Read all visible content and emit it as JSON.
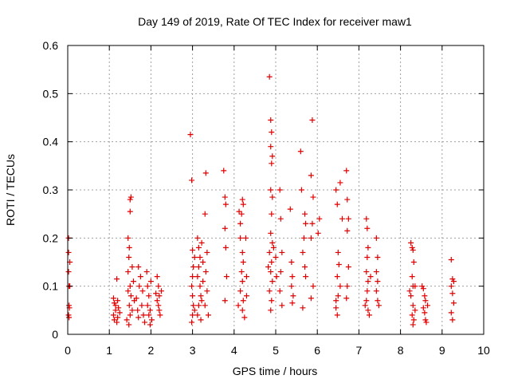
{
  "chart_data": {
    "type": "scatter",
    "title": "Day 149 of 2019, Rate Of TEC Index for receiver maw1",
    "xlabel": "GPS time / hours",
    "ylabel": "ROTI / TECUs",
    "xlim": [
      0,
      10
    ],
    "ylim": [
      0,
      0.6
    ],
    "xticks": [
      "0",
      "1",
      "2",
      "3",
      "4",
      "5",
      "6",
      "7",
      "8",
      "9",
      "10"
    ],
    "yticks": [
      "0",
      "0.1",
      "0.2",
      "0.3",
      "0.4",
      "0.5",
      "0.6"
    ],
    "grid": true,
    "marker": "plus",
    "color": "#e00000",
    "series": [
      {
        "points": [
          [
            0.02,
            0.2
          ],
          [
            0.02,
            0.17
          ],
          [
            0.02,
            0.13
          ],
          [
            0.03,
            0.1
          ],
          [
            0.03,
            0.06
          ],
          [
            0.02,
            0.04
          ],
          [
            0.05,
            0.15
          ],
          [
            0.05,
            0.1
          ],
          [
            0.04,
            0.055
          ],
          [
            0.03,
            0.035
          ],
          [
            1.1,
            0.075
          ],
          [
            1.12,
            0.065
          ],
          [
            1.15,
            0.05
          ],
          [
            1.1,
            0.04
          ],
          [
            1.12,
            0.03
          ],
          [
            1.18,
            0.115
          ],
          [
            1.2,
            0.07
          ],
          [
            1.22,
            0.055
          ],
          [
            1.18,
            0.025
          ],
          [
            1.25,
            0.045
          ],
          [
            1.15,
            0.06
          ],
          [
            1.2,
            0.035
          ],
          [
            1.45,
            0.2
          ],
          [
            1.48,
            0.18
          ],
          [
            1.5,
            0.28
          ],
          [
            1.52,
            0.285
          ],
          [
            1.5,
            0.255
          ],
          [
            1.47,
            0.16
          ],
          [
            1.45,
            0.13
          ],
          [
            1.5,
            0.1
          ],
          [
            1.52,
            0.08
          ],
          [
            1.48,
            0.06
          ],
          [
            1.5,
            0.04
          ],
          [
            1.47,
            0.02
          ],
          [
            1.55,
            0.14
          ],
          [
            1.55,
            0.05
          ],
          [
            1.45,
            0.09
          ],
          [
            1.42,
            0.03
          ],
          [
            1.58,
            0.11
          ],
          [
            1.6,
            0.07
          ],
          [
            1.65,
            0.075
          ],
          [
            1.68,
            0.05
          ],
          [
            1.7,
            0.14
          ],
          [
            1.72,
            0.1
          ],
          [
            1.7,
            0.035
          ],
          [
            1.75,
            0.12
          ],
          [
            1.78,
            0.06
          ],
          [
            1.8,
            0.09
          ],
          [
            1.82,
            0.04
          ],
          [
            1.85,
            0.025
          ],
          [
            1.9,
            0.13
          ],
          [
            1.92,
            0.1
          ],
          [
            1.95,
            0.08
          ],
          [
            1.92,
            0.06
          ],
          [
            1.95,
            0.04
          ],
          [
            1.98,
            0.02
          ],
          [
            2.0,
            0.11
          ],
          [
            1.98,
            0.05
          ],
          [
            2.02,
            0.03
          ],
          [
            2.15,
            0.12
          ],
          [
            2.18,
            0.1
          ],
          [
            2.2,
            0.08
          ],
          [
            2.15,
            0.07
          ],
          [
            2.18,
            0.06
          ],
          [
            2.2,
            0.05
          ],
          [
            2.25,
            0.09
          ],
          [
            2.22,
            0.04
          ],
          [
            2.12,
            0.085
          ],
          [
            2.95,
            0.415
          ],
          [
            2.98,
            0.32
          ],
          [
            3.0,
            0.175
          ],
          [
            3.02,
            0.14
          ],
          [
            3.0,
            0.12
          ],
          [
            2.98,
            0.1
          ],
          [
            3.0,
            0.08
          ],
          [
            3.02,
            0.06
          ],
          [
            3.0,
            0.04
          ],
          [
            2.98,
            0.025
          ],
          [
            3.05,
            0.16
          ],
          [
            3.05,
            0.05
          ],
          [
            3.12,
            0.2
          ],
          [
            3.15,
            0.18
          ],
          [
            3.18,
            0.16
          ],
          [
            3.15,
            0.14
          ],
          [
            3.12,
            0.12
          ],
          [
            3.18,
            0.1
          ],
          [
            3.2,
            0.08
          ],
          [
            3.15,
            0.06
          ],
          [
            3.12,
            0.04
          ],
          [
            3.2,
            0.03
          ],
          [
            3.22,
            0.19
          ],
          [
            3.25,
            0.15
          ],
          [
            3.25,
            0.11
          ],
          [
            3.22,
            0.07
          ],
          [
            3.32,
            0.335
          ],
          [
            3.3,
            0.25
          ],
          [
            3.35,
            0.17
          ],
          [
            3.32,
            0.13
          ],
          [
            3.35,
            0.09
          ],
          [
            3.3,
            0.06
          ],
          [
            3.38,
            0.04
          ],
          [
            3.75,
            0.34
          ],
          [
            3.78,
            0.285
          ],
          [
            3.8,
            0.27
          ],
          [
            3.78,
            0.22
          ],
          [
            3.8,
            0.18
          ],
          [
            3.82,
            0.12
          ],
          [
            3.78,
            0.07
          ],
          [
            4.12,
            0.255
          ],
          [
            4.15,
            0.23
          ],
          [
            4.2,
            0.28
          ],
          [
            4.22,
            0.27
          ],
          [
            4.18,
            0.25
          ],
          [
            4.15,
            0.2
          ],
          [
            4.2,
            0.17
          ],
          [
            4.22,
            0.15
          ],
          [
            4.18,
            0.13
          ],
          [
            4.2,
            0.11
          ],
          [
            4.15,
            0.09
          ],
          [
            4.22,
            0.07
          ],
          [
            4.2,
            0.05
          ],
          [
            4.25,
            0.035
          ],
          [
            4.28,
            0.2
          ],
          [
            4.3,
            0.12
          ],
          [
            4.1,
            0.06
          ],
          [
            4.3,
            0.08
          ],
          [
            4.85,
            0.535
          ],
          [
            4.88,
            0.445
          ],
          [
            4.9,
            0.42
          ],
          [
            4.88,
            0.39
          ],
          [
            4.92,
            0.37
          ],
          [
            4.9,
            0.355
          ],
          [
            4.88,
            0.3
          ],
          [
            4.92,
            0.285
          ],
          [
            4.9,
            0.25
          ],
          [
            4.88,
            0.21
          ],
          [
            4.92,
            0.19
          ],
          [
            4.85,
            0.17
          ],
          [
            4.9,
            0.15
          ],
          [
            4.88,
            0.13
          ],
          [
            4.92,
            0.11
          ],
          [
            4.85,
            0.09
          ],
          [
            4.9,
            0.07
          ],
          [
            4.88,
            0.05
          ],
          [
            4.95,
            0.18
          ],
          [
            5.0,
            0.16
          ],
          [
            5.02,
            0.12
          ],
          [
            4.82,
            0.14
          ],
          [
            5.1,
            0.3
          ],
          [
            5.12,
            0.24
          ],
          [
            5.15,
            0.17
          ],
          [
            5.12,
            0.13
          ],
          [
            5.1,
            0.09
          ],
          [
            5.15,
            0.06
          ],
          [
            5.35,
            0.26
          ],
          [
            5.38,
            0.15
          ],
          [
            5.4,
            0.12
          ],
          [
            5.38,
            0.1
          ],
          [
            5.42,
            0.08
          ],
          [
            5.4,
            0.065
          ],
          [
            5.6,
            0.38
          ],
          [
            5.62,
            0.3
          ],
          [
            5.7,
            0.25
          ],
          [
            5.72,
            0.23
          ],
          [
            5.68,
            0.2
          ],
          [
            5.65,
            0.17
          ],
          [
            5.7,
            0.14
          ],
          [
            5.72,
            0.12
          ],
          [
            5.65,
            0.055
          ],
          [
            5.88,
            0.445
          ],
          [
            5.85,
            0.33
          ],
          [
            5.9,
            0.285
          ],
          [
            5.88,
            0.23
          ],
          [
            5.85,
            0.2
          ],
          [
            5.9,
            0.1
          ],
          [
            5.85,
            0.075
          ],
          [
            6.05,
            0.24
          ],
          [
            6.02,
            0.21
          ],
          [
            6.45,
            0.3
          ],
          [
            6.48,
            0.27
          ],
          [
            6.5,
            0.17
          ],
          [
            6.52,
            0.145
          ],
          [
            6.48,
            0.12
          ],
          [
            6.5,
            0.08
          ],
          [
            6.45,
            0.055
          ],
          [
            6.48,
            0.04
          ],
          [
            6.55,
            0.315
          ],
          [
            6.6,
            0.24
          ],
          [
            6.55,
            0.1
          ],
          [
            6.45,
            0.07
          ],
          [
            6.7,
            0.34
          ],
          [
            6.72,
            0.28
          ],
          [
            6.75,
            0.24
          ],
          [
            6.72,
            0.215
          ],
          [
            6.75,
            0.14
          ],
          [
            6.72,
            0.1
          ],
          [
            6.7,
            0.075
          ],
          [
            7.18,
            0.24
          ],
          [
            7.2,
            0.22
          ],
          [
            7.22,
            0.18
          ],
          [
            7.2,
            0.16
          ],
          [
            7.18,
            0.13
          ],
          [
            7.22,
            0.11
          ],
          [
            7.2,
            0.09
          ],
          [
            7.18,
            0.07
          ],
          [
            7.22,
            0.05
          ],
          [
            7.25,
            0.04
          ],
          [
            7.28,
            0.12
          ],
          [
            7.15,
            0.06
          ],
          [
            7.42,
            0.2
          ],
          [
            7.45,
            0.16
          ],
          [
            7.42,
            0.13
          ],
          [
            7.45,
            0.11
          ],
          [
            7.42,
            0.09
          ],
          [
            7.45,
            0.07
          ],
          [
            7.48,
            0.06
          ],
          [
            8.25,
            0.19
          ],
          [
            8.28,
            0.18
          ],
          [
            8.3,
            0.175
          ],
          [
            8.32,
            0.15
          ],
          [
            8.28,
            0.12
          ],
          [
            8.3,
            0.1
          ],
          [
            8.25,
            0.08
          ],
          [
            8.3,
            0.06
          ],
          [
            8.28,
            0.04
          ],
          [
            8.32,
            0.03
          ],
          [
            8.3,
            0.02
          ],
          [
            8.35,
            0.1
          ],
          [
            8.35,
            0.05
          ],
          [
            8.22,
            0.09
          ],
          [
            8.55,
            0.095
          ],
          [
            8.58,
            0.08
          ],
          [
            8.6,
            0.07
          ],
          [
            8.55,
            0.055
          ],
          [
            8.58,
            0.045
          ],
          [
            8.6,
            0.03
          ],
          [
            8.62,
            0.025
          ],
          [
            8.65,
            0.06
          ],
          [
            8.52,
            0.1
          ],
          [
            9.22,
            0.155
          ],
          [
            9.25,
            0.115
          ],
          [
            9.22,
            0.1
          ],
          [
            9.25,
            0.085
          ],
          [
            9.28,
            0.065
          ],
          [
            9.22,
            0.045
          ],
          [
            9.25,
            0.03
          ],
          [
            9.28,
            0.11
          ]
        ]
      }
    ]
  }
}
